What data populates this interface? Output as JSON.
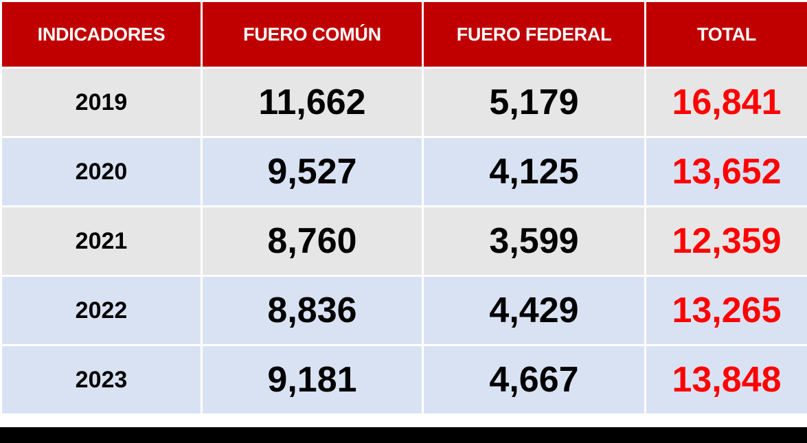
{
  "chart_data": {
    "type": "table",
    "columns": [
      "INDICADORES",
      "FUERO COMÚN",
      "FUERO FEDERAL",
      "TOTAL"
    ],
    "rows": [
      {
        "year": "2019",
        "fuero_comun": "11,662",
        "fuero_federal": "5,179",
        "total": "16,841"
      },
      {
        "year": "2020",
        "fuero_comun": "9,527",
        "fuero_federal": "4,125",
        "total": "13,652"
      },
      {
        "year": "2021",
        "fuero_comun": "8,760",
        "fuero_federal": "3,599",
        "total": "12,359"
      },
      {
        "year": "2022",
        "fuero_comun": "8,836",
        "fuero_federal": "4,429",
        "total": "13,265"
      },
      {
        "year": "2023",
        "fuero_comun": "9,181",
        "fuero_federal": "4,667",
        "total": "13,848"
      }
    ],
    "colors": {
      "header_bg": "#c00000",
      "header_text": "#ffffff",
      "row_alt_1": "#e7e6e6",
      "row_alt_2": "#d9e2f3",
      "total_text": "#ff0000"
    }
  }
}
